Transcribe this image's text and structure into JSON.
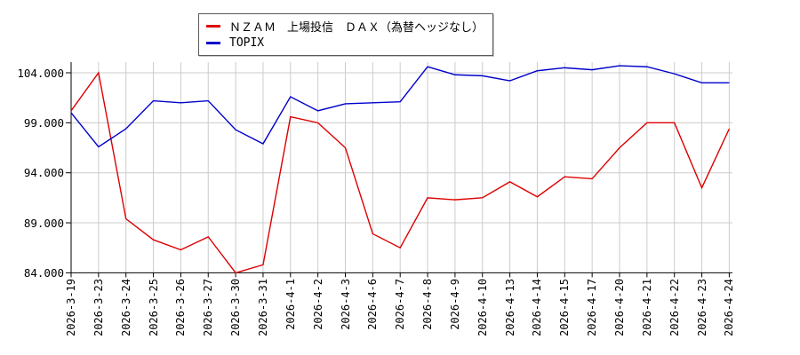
{
  "legend": {
    "items": [
      {
        "label": "ＮＺＡＭ　上場投信　ＤＡＸ（為替ヘッジなし）",
        "color": "#dd0000"
      },
      {
        "label": "TOPIX",
        "color": "#0000cc"
      }
    ]
  },
  "axes": {
    "y_tick_labels": [
      "104.000",
      "99.000",
      "94.000",
      "89.000",
      "84.000"
    ],
    "y_tick_values": [
      104,
      99,
      94,
      89,
      84
    ]
  },
  "colors": {
    "grid": "#cccccc",
    "axis": "#000000",
    "background": "#ffffff",
    "series_red": "#dd0000",
    "series_blue": "#0000cc"
  },
  "chart_data": {
    "type": "line",
    "title": "",
    "xlabel": "",
    "ylabel": "",
    "grid": true,
    "legend_position": "top-center",
    "ylim": [
      84,
      105.1
    ],
    "y_ticks": [
      84,
      89,
      94,
      99,
      104
    ],
    "x": [
      "2026-3-19",
      "2026-3-23",
      "2026-3-24",
      "2026-3-25",
      "2026-3-26",
      "2026-3-27",
      "2026-3-30",
      "2026-3-31",
      "2026-4-1",
      "2026-4-2",
      "2026-4-3",
      "2026-4-6",
      "2026-4-7",
      "2026-4-8",
      "2026-4-9",
      "2026-4-10",
      "2026-4-13",
      "2026-4-14",
      "2026-4-15",
      "2026-4-17",
      "2026-4-20",
      "2026-4-21",
      "2026-4-22",
      "2026-4-23",
      "2026-4-24"
    ],
    "series": [
      {
        "name": "ＮＺＡＭ　上場投信　ＤＡＸ（為替ヘッジなし）",
        "color": "#dd0000",
        "values": [
          100.2,
          104.0,
          89.4,
          87.3,
          86.3,
          87.6,
          84.0,
          84.8,
          99.6,
          99.0,
          96.5,
          87.9,
          86.5,
          91.5,
          91.3,
          91.5,
          93.1,
          91.6,
          93.6,
          93.4,
          96.5,
          99.0,
          99.0,
          92.5,
          98.4
        ]
      },
      {
        "name": "TOPIX",
        "color": "#0000cc",
        "values": [
          100.0,
          96.6,
          98.4,
          101.2,
          101.0,
          101.2,
          98.3,
          96.9,
          101.6,
          100.2,
          100.9,
          101.0,
          101.1,
          104.6,
          103.8,
          103.7,
          103.2,
          104.2,
          104.5,
          104.3,
          104.7,
          104.6,
          103.9,
          103.0,
          103.0
        ]
      }
    ]
  }
}
